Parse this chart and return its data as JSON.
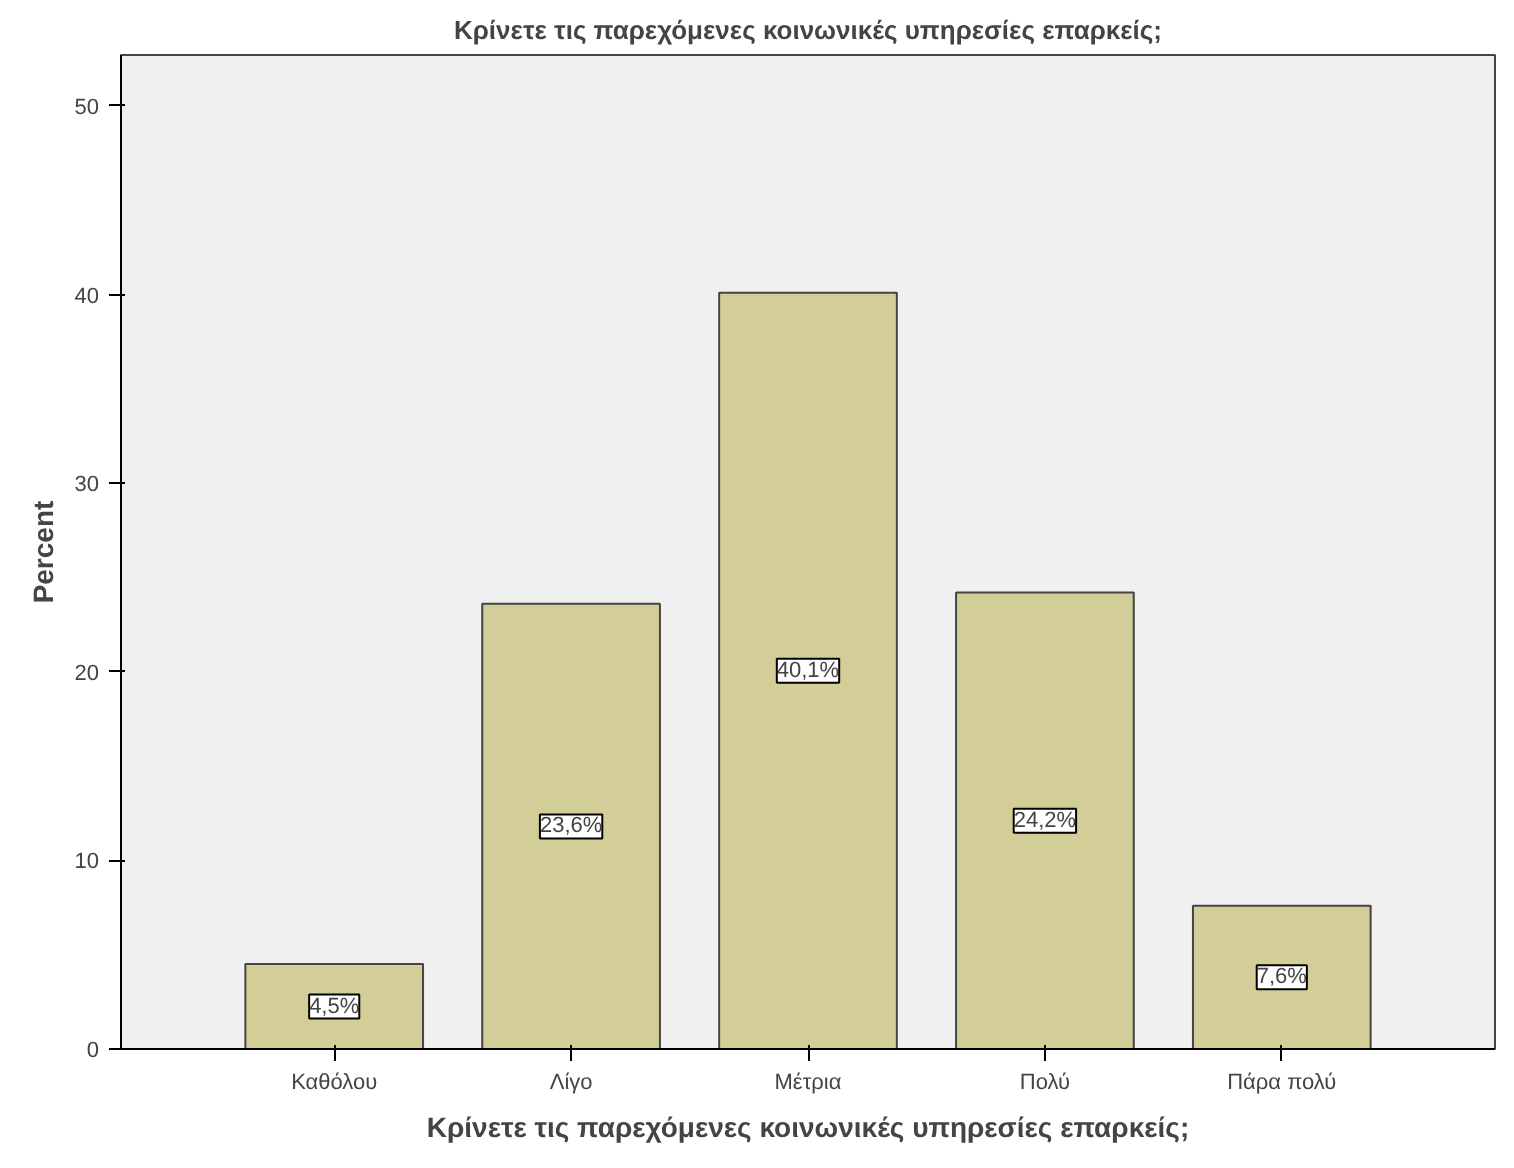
{
  "chart_data": {
    "type": "bar",
    "title": "Κρίνετε τις παρεχόμενες κοινωνικές υπηρεσίες επαρκείς;",
    "xlabel": "Κρίνετε τις παρεχόμενες κοινωνικές υπηρεσίες επαρκείς;",
    "ylabel": "Percent",
    "categories": [
      "Καθόλου",
      "Λίγο",
      "Μέτρια",
      "Πολύ",
      "Πάρα πολύ"
    ],
    "values": [
      4.5,
      23.6,
      40.1,
      24.2,
      7.6
    ],
    "value_labels": [
      "4,5%",
      "23,6%",
      "40,1%",
      "24,2%",
      "7,6%"
    ],
    "color": "#d3ce97",
    "ylim": [
      0,
      52.7
    ],
    "yticks": [
      0,
      10,
      20,
      30,
      40,
      50
    ],
    "grid": false
  }
}
